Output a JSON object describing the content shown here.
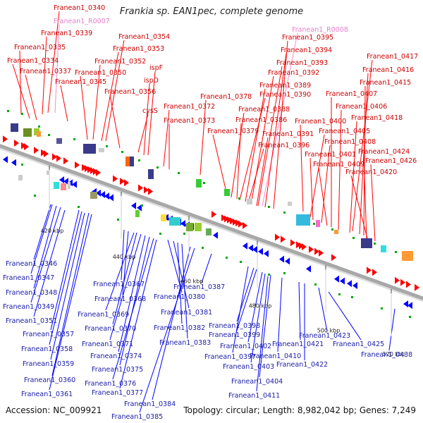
{
  "title": "Frankia sp. EAN1pec, complete genome",
  "accession": "Accession: NC_009921",
  "summary": "Topology: circular; Length: 8,982,042 bp; Genes: 7,249",
  "colors": {
    "forward": "#ff0000",
    "reverse": "#0000ff",
    "rna": "#ff88cc",
    "forward_label": "#cc0000",
    "reverse_label": "#1a1aa8",
    "backbone": "#a8a8a8"
  },
  "ticks": [
    "420 kbp",
    "440 kbp",
    "460 kbp",
    "480 kbp",
    "500 kbp",
    "520 kbp"
  ],
  "forward_genes": [
    "Franean1_0340",
    "Franean1_R0007",
    "Franean1_0339",
    "Franean1_0335",
    "Franean1_0334",
    "Franean1_0337",
    "Franean1_0345",
    "Franean1_0354",
    "Franean1_0353",
    "Franean1_0352",
    "Franean1_0350",
    "Franean1_0356",
    "ispF",
    "ispD",
    "cysS",
    "Franean1_0372",
    "Franean1_0373",
    "Franean1_0378",
    "Franean1_0379",
    "Franean1_R0008",
    "Franean1_0395",
    "Franean1_0394",
    "Franean1_0393",
    "Franean1_0392",
    "Franean1_0389",
    "Franean1_0390",
    "Franean1_0388",
    "Franean1_0386",
    "Franean1_0391",
    "Franean1_0396",
    "Franean1_0400",
    "Franean1_0401",
    "Franean1_0405",
    "Franean1_0408",
    "Franean1_0409",
    "Franean1_0417",
    "Franean1_0416",
    "Franean1_0415",
    "Franean1_0407",
    "Franean1_0406",
    "Franean1_0418",
    "Franean1_0424",
    "Franean1_0426",
    "Franean1_0420"
  ],
  "reverse_genes": [
    "Franean1_0346",
    "Franean1_0347",
    "Franean1_0348",
    "Franean1_0349",
    "Franean1_0351",
    "Franean1_0357",
    "Franean1_0358",
    "Franean1_0359",
    "Franean1_0360",
    "Franean1_0361",
    "Franean1_0367",
    "Franean1_0368",
    "Franean1_0369",
    "Franean1_0370",
    "Franean1_0371",
    "Franean1_0374",
    "Franean1_0375",
    "Franean1_0376",
    "Franean1_0377",
    "Franean1_0380",
    "Franean1_0381",
    "Franean1_0382",
    "Franean1_0383",
    "Franean1_0384",
    "Franean1_0385",
    "Franean1_0387",
    "Franean1_0398",
    "Franean1_0399",
    "Franean1_0397",
    "Franean1_0402",
    "Franean1_0403",
    "Franean1_0404",
    "Franean1_0410",
    "Franean1_0411",
    "Franean1_0421",
    "Franean1_0422",
    "Franean1_0423",
    "Franean1_0425",
    "Franean1_0438"
  ]
}
